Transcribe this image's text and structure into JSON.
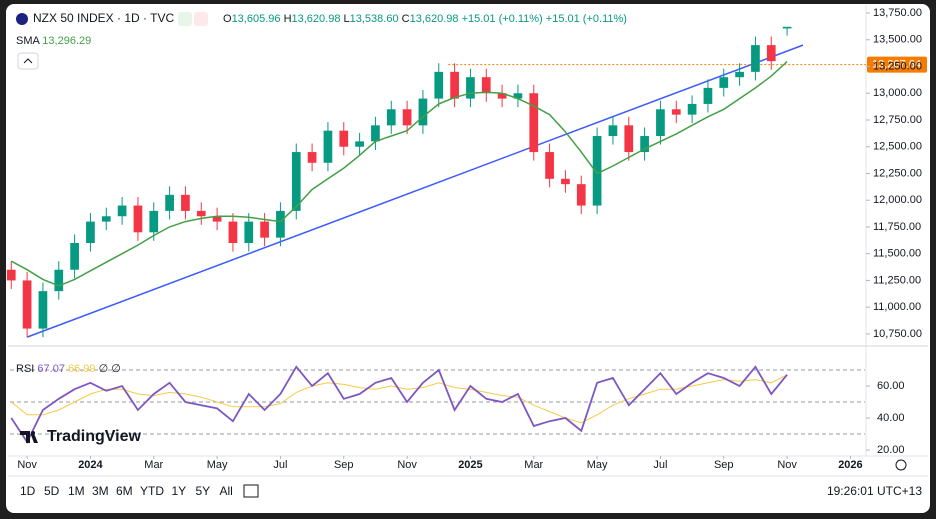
{
  "chart_data": {
    "type": "candlestick",
    "title": "NZX 50 INDEX · 1D · TVC",
    "ohlc_legend": [
      {
        "label": "O",
        "value": "13,605.96"
      },
      {
        "label": "H",
        "value": "13,620.98"
      },
      {
        "label": "L",
        "value": "13,538.60"
      },
      {
        "label": "C",
        "value": "13,620.98"
      }
    ],
    "change_labels": [
      "+15.01 (+0.11%)",
      "+15.01 (+0.11%)"
    ],
    "up_color": "#089981",
    "down_color": "#f23645",
    "x": [
      -0.5,
      0,
      0.5,
      1,
      1.5,
      2,
      2.5,
      3,
      3.5,
      4,
      4.5,
      5,
      5.5,
      6,
      6.5,
      7,
      7.5,
      8,
      8.5,
      9,
      9.5,
      10,
      10.5,
      11,
      11.5,
      12,
      12.5,
      13,
      13.5,
      14,
      14.5,
      15,
      15.5,
      16,
      16.5,
      17,
      17.5,
      18,
      18.5,
      19,
      19.5,
      20,
      20.5,
      21,
      21.5,
      22,
      22.5,
      23,
      23.5,
      24
    ],
    "open": [
      11350,
      11250,
      10800,
      11150,
      11350,
      11600,
      11800,
      11850,
      11950,
      11700,
      11900,
      12050,
      11900,
      11850,
      11800,
      11600,
      11800,
      11650,
      11900,
      12450,
      12350,
      12650,
      12500,
      12550,
      12700,
      12850,
      12700,
      12950,
      13200,
      12950,
      13150,
      13000,
      12950,
      13000,
      12450,
      12200,
      12150,
      11950,
      12600,
      12700,
      12450,
      12600,
      12850,
      12800,
      12900,
      13050,
      13150,
      13200,
      13450,
      13605.96
    ],
    "high": [
      11430,
      11330,
      11230,
      11430,
      11680,
      11880,
      11930,
      12030,
      12030,
      11980,
      12130,
      12130,
      11980,
      11930,
      11880,
      11880,
      11880,
      11980,
      12530,
      12530,
      12730,
      12730,
      12630,
      12780,
      12930,
      12930,
      13030,
      13280,
      13280,
      13230,
      13230,
      13080,
      13080,
      13080,
      12530,
      12280,
      12230,
      12680,
      12780,
      12780,
      12680,
      12930,
      12930,
      12980,
      13130,
      13230,
      13280,
      13530,
      13530,
      13620.98
    ],
    "low": [
      11170,
      10720,
      10720,
      11070,
      11270,
      11520,
      11720,
      11770,
      11620,
      11620,
      11820,
      11820,
      11770,
      11720,
      11520,
      11520,
      11570,
      11570,
      11820,
      12270,
      12270,
      12420,
      12420,
      12470,
      12620,
      12620,
      12620,
      12870,
      12870,
      12870,
      12920,
      12870,
      12870,
      12370,
      12120,
      12070,
      11870,
      11870,
      12520,
      12370,
      12370,
      12520,
      12720,
      12720,
      12820,
      12970,
      13070,
      13120,
      13220,
      13538.6
    ],
    "close": [
      11250,
      10800,
      11150,
      11350,
      11600,
      11800,
      11850,
      11950,
      11700,
      11900,
      12050,
      11900,
      11850,
      11800,
      11600,
      11800,
      11650,
      11900,
      12450,
      12350,
      12650,
      12500,
      12550,
      12700,
      12850,
      12700,
      12950,
      13200,
      12950,
      13150,
      13000,
      12950,
      13000,
      12450,
      12200,
      12150,
      11950,
      12600,
      12700,
      12450,
      12600,
      12850,
      12800,
      12900,
      13050,
      13150,
      13200,
      13450,
      13300,
      13620.98
    ],
    "overlays": [
      {
        "name": "SMA",
        "value_label": "13,296.29",
        "color": "#43a047",
        "values": [
          11430,
          11350,
          11260,
          11200,
          11260,
          11340,
          11420,
          11500,
          11580,
          11670,
          11750,
          11800,
          11830,
          11850,
          11850,
          11840,
          11820,
          11800,
          11940,
          12100,
          12200,
          12300,
          12420,
          12550,
          12600,
          12650,
          12780,
          12900,
          12960,
          13000,
          13010,
          13000,
          12950,
          12880,
          12800,
          12640,
          12450,
          12250,
          12320,
          12400,
          12480,
          12550,
          12620,
          12700,
          12780,
          12850,
          12950,
          13050,
          13160,
          13296.29
        ]
      }
    ],
    "trendline": {
      "x": [
        0,
        24.5
      ],
      "y": [
        10720,
        13450
      ],
      "color": "#3d5afe"
    },
    "price_line": {
      "value": 13267.64,
      "label": "13,267.64",
      "color": "#f57c00",
      "x_start": 13.3
    },
    "xlim": [
      -0.54,
      26.46
    ],
    "xticks": [
      {
        "value": 0,
        "label": "Nov"
      },
      {
        "value": 2,
        "label": "2024"
      },
      {
        "value": 4,
        "label": "Mar"
      },
      {
        "value": 6,
        "label": "May"
      },
      {
        "value": 8,
        "label": "Jul"
      },
      {
        "value": 10,
        "label": "Sep"
      },
      {
        "value": 12,
        "label": "Nov"
      },
      {
        "value": 14,
        "label": "2025"
      },
      {
        "value": 16,
        "label": "Mar"
      },
      {
        "value": 18,
        "label": "May"
      },
      {
        "value": 20,
        "label": "Jul"
      },
      {
        "value": 22,
        "label": "Sep"
      },
      {
        "value": 24,
        "label": "Nov"
      },
      {
        "value": 26,
        "label": "2026"
      }
    ],
    "ylim": [
      10665,
      13825
    ],
    "yticks": [
      {
        "value": 10750,
        "label": "10,750.00"
      },
      {
        "value": 11000,
        "label": "11,000.00"
      },
      {
        "value": 11250,
        "label": "11,250.00"
      },
      {
        "value": 11500,
        "label": "11,500.00"
      },
      {
        "value": 11750,
        "label": "11,750.00"
      },
      {
        "value": 12000,
        "label": "12,000.00"
      },
      {
        "value": 12250,
        "label": "12,250.00"
      },
      {
        "value": 12500,
        "label": "12,500.00"
      },
      {
        "value": 12750,
        "label": "12,750.00"
      },
      {
        "value": 13000,
        "label": "13,000.00"
      },
      {
        "value": 13250,
        "label": "13,250.00"
      },
      {
        "value": 13500,
        "label": "13,500.00"
      },
      {
        "value": 13750,
        "label": "13,750.00"
      }
    ],
    "rsi": {
      "name": "RSI",
      "color": "#7e57c2",
      "ma_color": "#f7c948",
      "value_label": "67.07",
      "ma_label": "66.99",
      "extra": [
        "∅",
        "∅"
      ],
      "values": [
        40,
        25,
        45,
        52,
        58,
        62,
        57,
        60,
        45,
        55,
        62,
        50,
        48,
        46,
        38,
        55,
        45,
        55,
        72,
        60,
        68,
        52,
        55,
        62,
        65,
        50,
        62,
        70,
        45,
        60,
        52,
        50,
        55,
        35,
        38,
        40,
        32,
        62,
        65,
        48,
        58,
        68,
        55,
        62,
        68,
        65,
        60,
        72,
        55,
        67.07
      ],
      "ma_values": [
        50,
        42,
        42,
        45,
        50,
        55,
        58,
        58,
        55,
        54,
        56,
        55,
        53,
        50,
        47,
        47,
        47,
        49,
        56,
        60,
        62,
        61,
        59,
        58,
        60,
        58,
        59,
        62,
        59,
        58,
        56,
        54,
        53,
        48,
        44,
        40,
        37,
        42,
        48,
        52,
        55,
        58,
        58,
        60,
        62,
        64,
        63,
        64,
        62,
        66.99
      ],
      "ylim": [
        16.9,
        82.5
      ],
      "yticks": [
        {
          "value": 20,
          "label": "20.00"
        },
        {
          "value": 40,
          "label": "40.00"
        },
        {
          "value": 60,
          "label": "60.00"
        }
      ],
      "levels": [
        30,
        50,
        70
      ]
    }
  },
  "ui": {
    "logo": "TradingView",
    "timeframes": [
      "1D",
      "5D",
      "1M",
      "3M",
      "6M",
      "YTD",
      "1Y",
      "5Y",
      "All"
    ],
    "clock": "19:26:01 UTC+13"
  }
}
